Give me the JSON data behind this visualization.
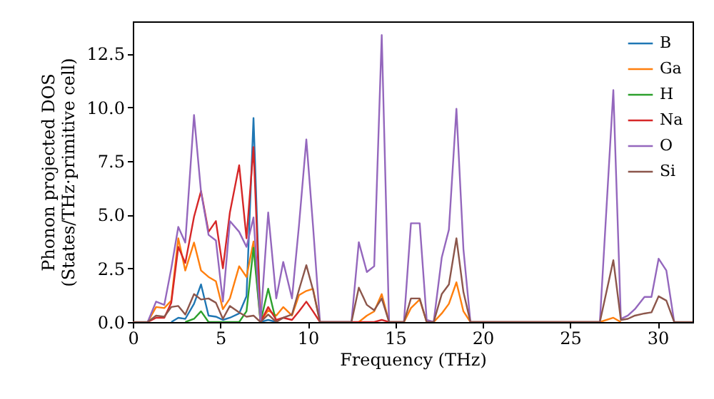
{
  "chart_data": {
    "type": "line",
    "xlabel": "Frequency (THz)",
    "ylabel": "Phonon projected DOS\n(States/THz·primitive cell)",
    "x": [
      0,
      0.85,
      1.33,
      1.8,
      2.2,
      2.6,
      3.0,
      3.5,
      3.9,
      4.33,
      4.75,
      5.15,
      5.55,
      6.08,
      6.5,
      6.9,
      7.3,
      7.74,
      8.2,
      8.6,
      9.1,
      9.5,
      9.92,
      10.3,
      10.7,
      12.5,
      12.92,
      13.38,
      13.8,
      14.23,
      14.65,
      15.5,
      15.9,
      16.4,
      16.8,
      17.2,
      17.66,
      18.07,
      18.5,
      18.9,
      19.3,
      26.7,
      27.47,
      27.9,
      28.3,
      28.7,
      29.25,
      29.65,
      30.06,
      30.5,
      30.95,
      32
    ],
    "series": [
      {
        "name": "B",
        "color": "#1f77b4",
        "values": [
          null,
          null,
          null,
          null,
          0,
          0.2,
          0.15,
          0.85,
          1.75,
          0.3,
          0.25,
          0.1,
          0.2,
          0.4,
          1.2,
          9.5,
          0,
          0.1,
          0,
          null,
          null,
          null,
          null,
          null,
          null,
          null,
          null,
          null,
          null,
          null,
          null,
          null,
          null,
          null,
          null,
          null,
          null,
          null,
          null,
          null,
          null,
          null,
          null,
          null,
          null,
          null,
          null,
          null,
          null,
          null,
          null,
          null
        ]
      },
      {
        "name": "Ga",
        "color": "#ff7f0e",
        "values": [
          null,
          0,
          0.7,
          0.65,
          1.0,
          3.9,
          2.4,
          3.7,
          2.4,
          2.1,
          1.9,
          0.6,
          1.1,
          2.6,
          2.1,
          3.75,
          0,
          0.55,
          0.3,
          0.7,
          0.3,
          1.25,
          1.45,
          1.55,
          0,
          null,
          0,
          0.3,
          0.5,
          1.3,
          0,
          0,
          0.65,
          1.05,
          0,
          0,
          0.4,
          0.85,
          1.85,
          0.5,
          0,
          0,
          0.2,
          0,
          null,
          null,
          null,
          null,
          null,
          null,
          null,
          null
        ]
      },
      {
        "name": "H",
        "color": "#2ca02c",
        "values": [
          null,
          null,
          null,
          null,
          null,
          null,
          0,
          0.15,
          0.5,
          0,
          0,
          0,
          0,
          0,
          0.5,
          3.46,
          0,
          1.55,
          0,
          null,
          null,
          null,
          null,
          null,
          null,
          null,
          null,
          null,
          null,
          null,
          null,
          null,
          null,
          null,
          null,
          null,
          null,
          null,
          null,
          null,
          null,
          null,
          null,
          null,
          null,
          null,
          null,
          null,
          null,
          null,
          null,
          null
        ]
      },
      {
        "name": "Na",
        "color": "#d62728",
        "values": [
          null,
          0,
          0.2,
          0.2,
          0.9,
          3.5,
          2.75,
          4.9,
          6.1,
          4.2,
          4.7,
          2.5,
          5.1,
          7.3,
          3.9,
          8.15,
          0,
          0.7,
          0.1,
          0.2,
          0.1,
          0.5,
          0.95,
          0.5,
          0,
          0,
          0,
          0,
          0,
          0.1,
          0,
          null,
          null,
          null,
          null,
          null,
          null,
          null,
          null,
          null,
          null,
          null,
          null,
          null,
          null,
          null,
          null,
          null,
          null,
          null,
          null,
          null
        ]
      },
      {
        "name": "O",
        "color": "#9467bd",
        "values": [
          null,
          0,
          0.95,
          0.8,
          2.5,
          4.43,
          3.7,
          9.64,
          6.05,
          4.06,
          3.8,
          0.95,
          4.7,
          4.2,
          3.5,
          4.87,
          0,
          5.1,
          1.1,
          2.8,
          1.1,
          4.5,
          8.5,
          4.5,
          0,
          0,
          3.72,
          2.33,
          2.6,
          13.36,
          0,
          0,
          4.6,
          4.6,
          0.1,
          0,
          3.0,
          4.3,
          9.93,
          3.4,
          0,
          0,
          10.8,
          0.15,
          0.3,
          0.6,
          1.17,
          1.17,
          2.95,
          2.4,
          0,
          null
        ]
      },
      {
        "name": "Si",
        "color": "#8c564b",
        "values": [
          0,
          0,
          0.3,
          0.25,
          0.7,
          0.75,
          0.35,
          1.3,
          1.05,
          1.1,
          0.9,
          0.15,
          0.75,
          0.45,
          0.25,
          0.3,
          0,
          0.35,
          0,
          0.2,
          0.35,
          1.5,
          2.65,
          1.5,
          0,
          0,
          1.6,
          0.8,
          0.55,
          1.1,
          0,
          0,
          1.1,
          1.1,
          0,
          0,
          1.3,
          1.75,
          3.9,
          1.4,
          0,
          0,
          2.88,
          0.1,
          0.15,
          0.3,
          0.4,
          0.45,
          1.2,
          1.0,
          0,
          0
        ]
      }
    ],
    "xlim": [
      0,
      32
    ],
    "xticks": [
      0,
      5,
      10,
      15,
      20,
      25,
      30
    ],
    "ylim": [
      0,
      14
    ],
    "yticks": [
      {
        "value": 0,
        "label": "0.0"
      },
      {
        "value": 2.5,
        "label": "2.5"
      },
      {
        "value": 5,
        "label": "5.0"
      },
      {
        "value": 7.5,
        "label": "7.5"
      },
      {
        "value": 10,
        "label": "10.0"
      },
      {
        "value": 12.5,
        "label": "12.5"
      }
    ],
    "grid": false,
    "legend": "top right",
    "marker": "none",
    "line_style": "solid"
  }
}
